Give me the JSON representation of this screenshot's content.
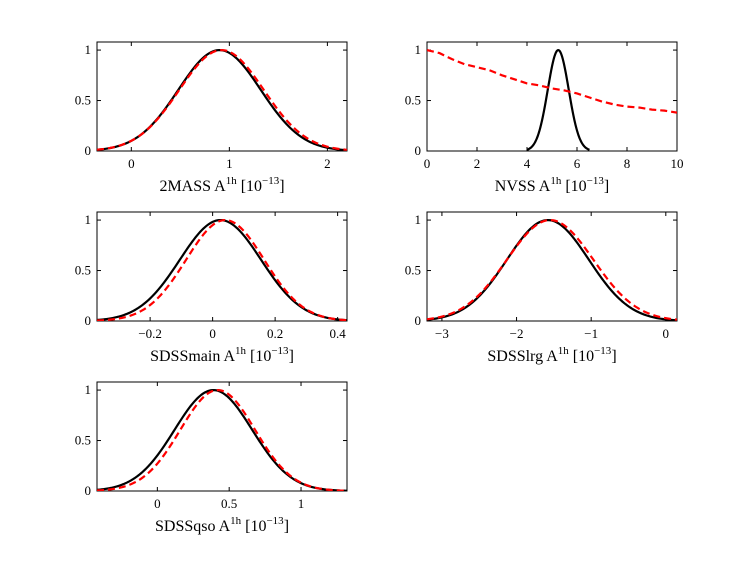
{
  "figure": {
    "description_panels": 5
  },
  "chart_data": [
    {
      "type": "line",
      "panel": "2MASS",
      "xlabel_main": "2MASS A",
      "xlabel_sup": "1h",
      "xlabel_unit": "[10",
      "xlabel_unit_sup": "−13",
      "xlabel_unit_close": "]",
      "xlim": [
        -0.35,
        2.2
      ],
      "ylim": [
        0,
        1.08
      ],
      "xticks": [
        0,
        1,
        2
      ],
      "xtick_labels": [
        "0",
        "1",
        "2"
      ],
      "yticks": [
        0,
        0.5,
        1
      ],
      "ytick_labels": [
        "0",
        "0.5",
        "1"
      ],
      "series": [
        {
          "name": "black solid",
          "color": "#000000",
          "style": "solid",
          "model": "gaussian",
          "mu": 0.9,
          "sigma": 0.42
        },
        {
          "name": "red dashed",
          "color": "#ff0000",
          "style": "dashed",
          "model": "gaussian",
          "mu": 0.92,
          "sigma": 0.43
        }
      ]
    },
    {
      "type": "line",
      "panel": "NVSS",
      "xlabel_main": "NVSS A",
      "xlabel_sup": "1h",
      "xlabel_unit": "[10",
      "xlabel_unit_sup": "−13",
      "xlabel_unit_close": "]",
      "xlim": [
        0,
        10
      ],
      "ylim": [
        0,
        1.08
      ],
      "xticks": [
        0,
        2,
        4,
        6,
        8,
        10
      ],
      "xtick_labels": [
        "0",
        "2",
        "4",
        "6",
        "8",
        "10"
      ],
      "yticks": [
        0,
        0.5,
        1
      ],
      "ytick_labels": [
        "0",
        "0.5",
        "1"
      ],
      "series": [
        {
          "name": "black solid",
          "color": "#000000",
          "style": "solid",
          "model": "gaussian",
          "mu": 5.25,
          "sigma": 0.42,
          "range": [
            4.0,
            6.5
          ]
        },
        {
          "name": "red dashed",
          "color": "#ff0000",
          "style": "dashed",
          "model": "points",
          "x": [
            0,
            0.5,
            1,
            1.5,
            2,
            2.5,
            3,
            3.5,
            4,
            4.5,
            5,
            5.5,
            6,
            6.5,
            7,
            7.5,
            8,
            8.5,
            9,
            9.5,
            10
          ],
          "y": [
            1.0,
            0.97,
            0.91,
            0.86,
            0.83,
            0.8,
            0.75,
            0.71,
            0.67,
            0.65,
            0.62,
            0.6,
            0.57,
            0.53,
            0.49,
            0.46,
            0.44,
            0.43,
            0.41,
            0.4,
            0.38
          ]
        }
      ]
    },
    {
      "type": "line",
      "panel": "SDSSmain",
      "xlabel_main": "SDSSmain A",
      "xlabel_sup": "1h",
      "xlabel_unit": "[10",
      "xlabel_unit_sup": "−13",
      "xlabel_unit_close": "]",
      "xlim": [
        -0.37,
        0.43
      ],
      "ylim": [
        0,
        1.08
      ],
      "xticks": [
        -0.2,
        0,
        0.2,
        0.4
      ],
      "xtick_labels": [
        "−0.2",
        "0",
        "0.2",
        "0.4"
      ],
      "yticks": [
        0,
        0.5,
        1
      ],
      "ytick_labels": [
        "0",
        "0.5",
        "1"
      ],
      "series": [
        {
          "name": "black solid",
          "color": "#000000",
          "style": "solid",
          "model": "gaussian",
          "mu": 0.025,
          "sigma": 0.13
        },
        {
          "name": "red dashed",
          "color": "#ff0000",
          "style": "dashed",
          "model": "gaussian",
          "mu": 0.04,
          "sigma": 0.125
        }
      ]
    },
    {
      "type": "line",
      "panel": "SDSSlrg",
      "xlabel_main": "SDSSlrg A",
      "xlabel_sup": "1h",
      "xlabel_unit": "[10",
      "xlabel_unit_sup": "−13",
      "xlabel_unit_close": "]",
      "xlim": [
        -3.2,
        0.15
      ],
      "ylim": [
        0,
        1.08
      ],
      "xticks": [
        -3,
        -2,
        -1,
        0
      ],
      "xtick_labels": [
        "−3",
        "−2",
        "−1",
        "0"
      ],
      "yticks": [
        0,
        0.5,
        1
      ],
      "ytick_labels": [
        "0",
        "0.5",
        "1"
      ],
      "series": [
        {
          "name": "black solid",
          "color": "#000000",
          "style": "solid",
          "model": "gaussian",
          "mu": -1.58,
          "sigma": 0.55
        },
        {
          "name": "red dashed",
          "color": "#ff0000",
          "style": "dashed",
          "model": "gaussian",
          "mu": -1.55,
          "sigma": 0.58
        }
      ]
    },
    {
      "type": "line",
      "panel": "SDSSqso",
      "xlabel_main": "SDSSqso A",
      "xlabel_sup": "1h",
      "xlabel_unit": "[10",
      "xlabel_unit_sup": "−13",
      "xlabel_unit_close": "]",
      "xlim": [
        -0.42,
        1.32
      ],
      "ylim": [
        0,
        1.08
      ],
      "xticks": [
        0,
        0.5,
        1
      ],
      "xtick_labels": [
        "0",
        "0.5",
        "1"
      ],
      "yticks": [
        0,
        0.5,
        1
      ],
      "ytick_labels": [
        "0",
        "0.5",
        "1"
      ],
      "series": [
        {
          "name": "black solid",
          "color": "#000000",
          "style": "solid",
          "model": "gaussian",
          "mu": 0.39,
          "sigma": 0.27
        },
        {
          "name": "red dashed",
          "color": "#ff0000",
          "style": "dashed",
          "model": "gaussian",
          "mu": 0.42,
          "sigma": 0.26
        }
      ]
    }
  ]
}
